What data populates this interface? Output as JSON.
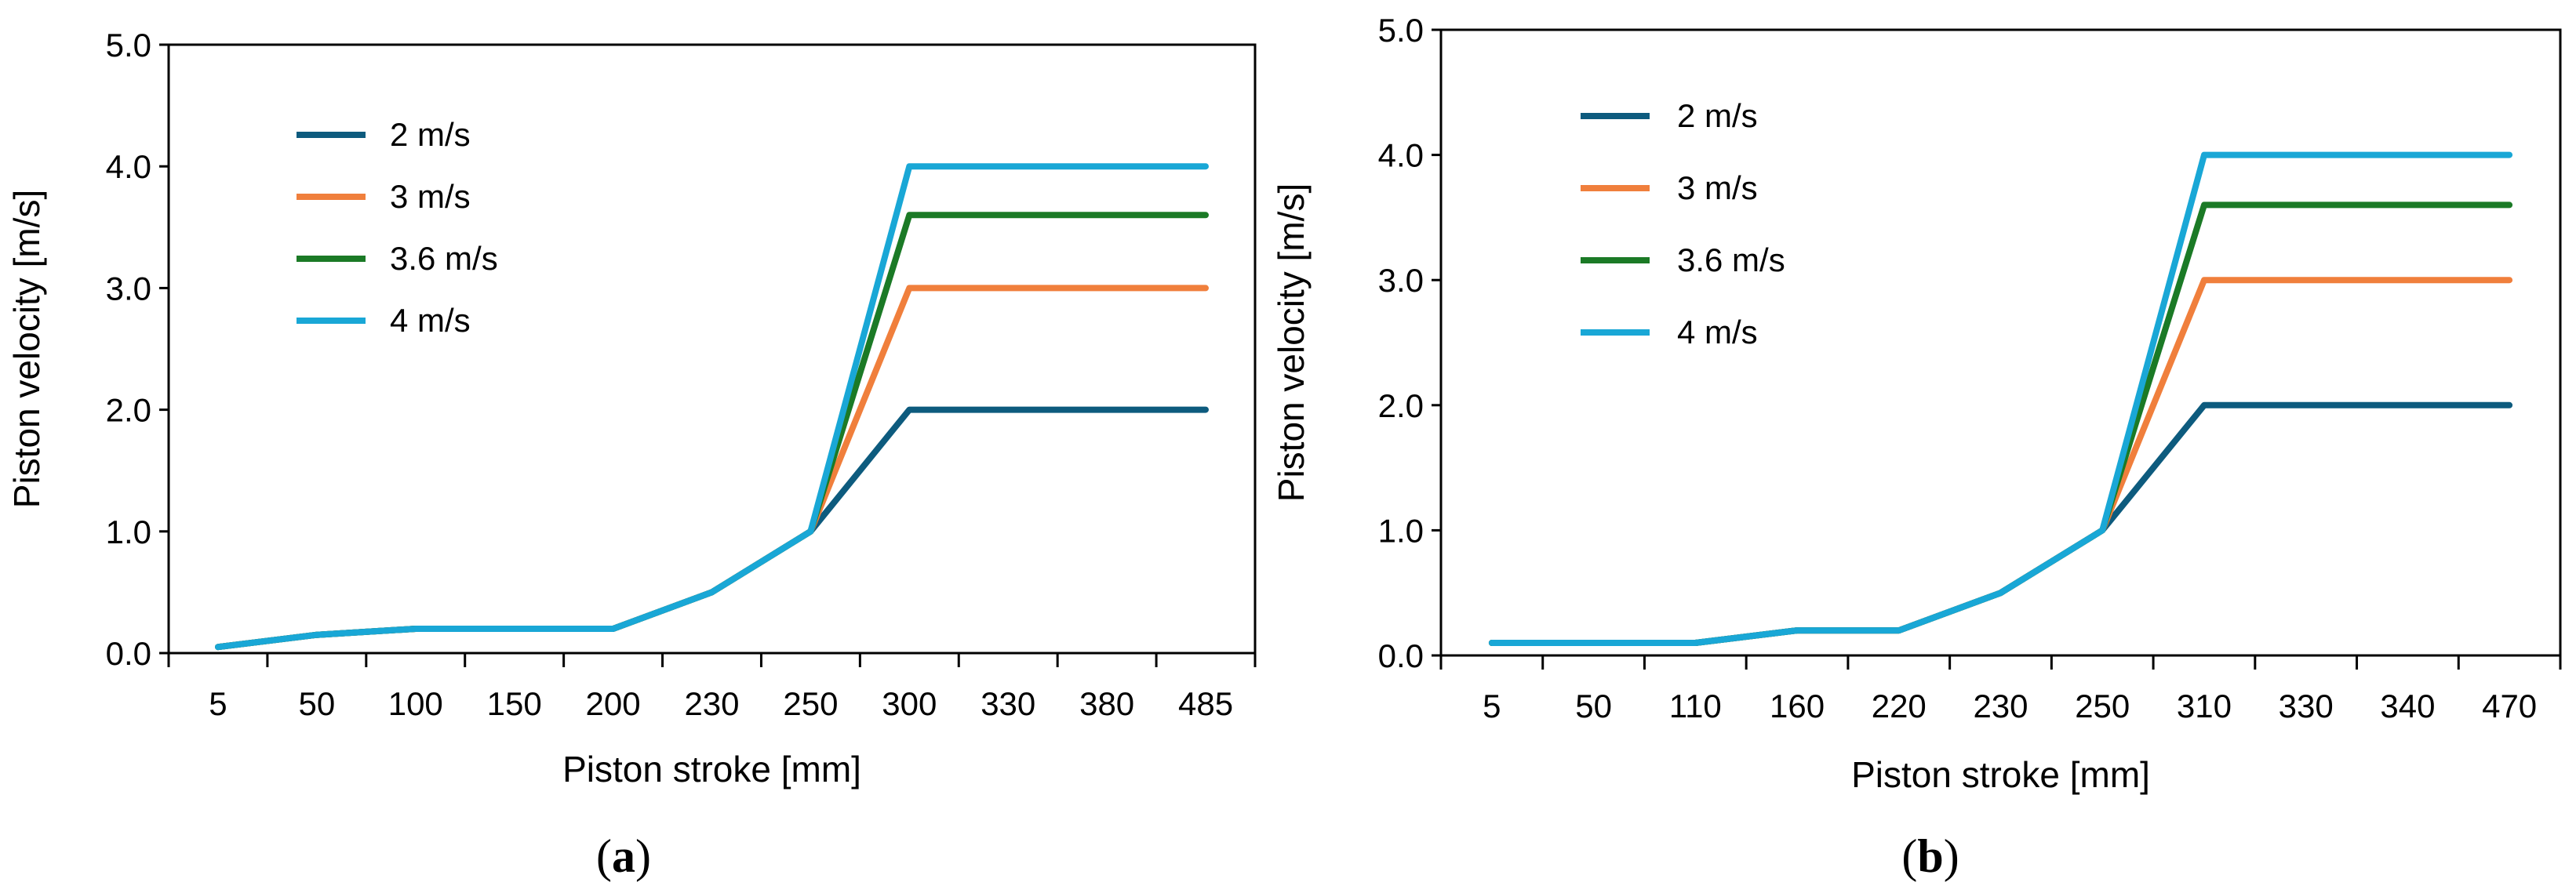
{
  "chart_data": [
    {
      "type": "line",
      "panel_label": "(a)",
      "panel_label_prefix": "(",
      "panel_label_letter": "a",
      "panel_label_suffix": ")",
      "xlabel": "Piston stroke [mm]",
      "ylabel": "Piston velocity [m/s]",
      "ylim": [
        0,
        5
      ],
      "yticks": [
        "0.0",
        "1.0",
        "2.0",
        "3.0",
        "4.0",
        "5.0"
      ],
      "categories": [
        "5",
        "50",
        "100",
        "150",
        "200",
        "230",
        "250",
        "300",
        "330",
        "380",
        "485"
      ],
      "legend_position": "top-left",
      "series": [
        {
          "name": "2 m/s",
          "color": "#0d5b7e",
          "values": [
            0.05,
            0.15,
            0.2,
            0.2,
            0.2,
            0.5,
            1.0,
            2.0,
            2.0,
            2.0,
            2.0
          ]
        },
        {
          "name": "3 m/s",
          "color": "#f07f3c",
          "values": [
            0.05,
            0.15,
            0.2,
            0.2,
            0.2,
            0.5,
            1.0,
            3.0,
            3.0,
            3.0,
            3.0
          ]
        },
        {
          "name": "3.6 m/s",
          "color": "#1b7a26",
          "values": [
            0.05,
            0.15,
            0.2,
            0.2,
            0.2,
            0.5,
            1.0,
            3.6,
            3.6,
            3.6,
            3.6
          ]
        },
        {
          "name": "4 m/s",
          "color": "#19a7d6",
          "values": [
            0.05,
            0.15,
            0.2,
            0.2,
            0.2,
            0.5,
            1.0,
            4.0,
            4.0,
            4.0,
            4.0
          ]
        }
      ]
    },
    {
      "type": "line",
      "panel_label": "(b)",
      "panel_label_prefix": "(",
      "panel_label_letter": "b",
      "panel_label_suffix": ")",
      "xlabel": "Piston stroke [mm]",
      "ylabel": "Piston velocity [m/s]",
      "ylim": [
        0,
        5
      ],
      "yticks": [
        "0.0",
        "1.0",
        "2.0",
        "3.0",
        "4.0",
        "5.0"
      ],
      "categories": [
        "5",
        "50",
        "110",
        "160",
        "220",
        "230",
        "250",
        "310",
        "330",
        "340",
        "470"
      ],
      "legend_position": "top-left",
      "series": [
        {
          "name": "2 m/s",
          "color": "#0d5b7e",
          "values": [
            0.1,
            0.1,
            0.1,
            0.2,
            0.2,
            0.5,
            1.0,
            2.0,
            2.0,
            2.0,
            2.0
          ]
        },
        {
          "name": "3 m/s",
          "color": "#f07f3c",
          "values": [
            0.1,
            0.1,
            0.1,
            0.2,
            0.2,
            0.5,
            1.0,
            3.0,
            3.0,
            3.0,
            3.0
          ]
        },
        {
          "name": "3.6 m/s",
          "color": "#1b7a26",
          "values": [
            0.1,
            0.1,
            0.1,
            0.2,
            0.2,
            0.5,
            1.0,
            3.6,
            3.6,
            3.6,
            3.6
          ]
        },
        {
          "name": "4 m/s",
          "color": "#19a7d6",
          "values": [
            0.1,
            0.1,
            0.1,
            0.2,
            0.2,
            0.5,
            1.0,
            4.0,
            4.0,
            4.0,
            4.0
          ]
        }
      ]
    }
  ]
}
